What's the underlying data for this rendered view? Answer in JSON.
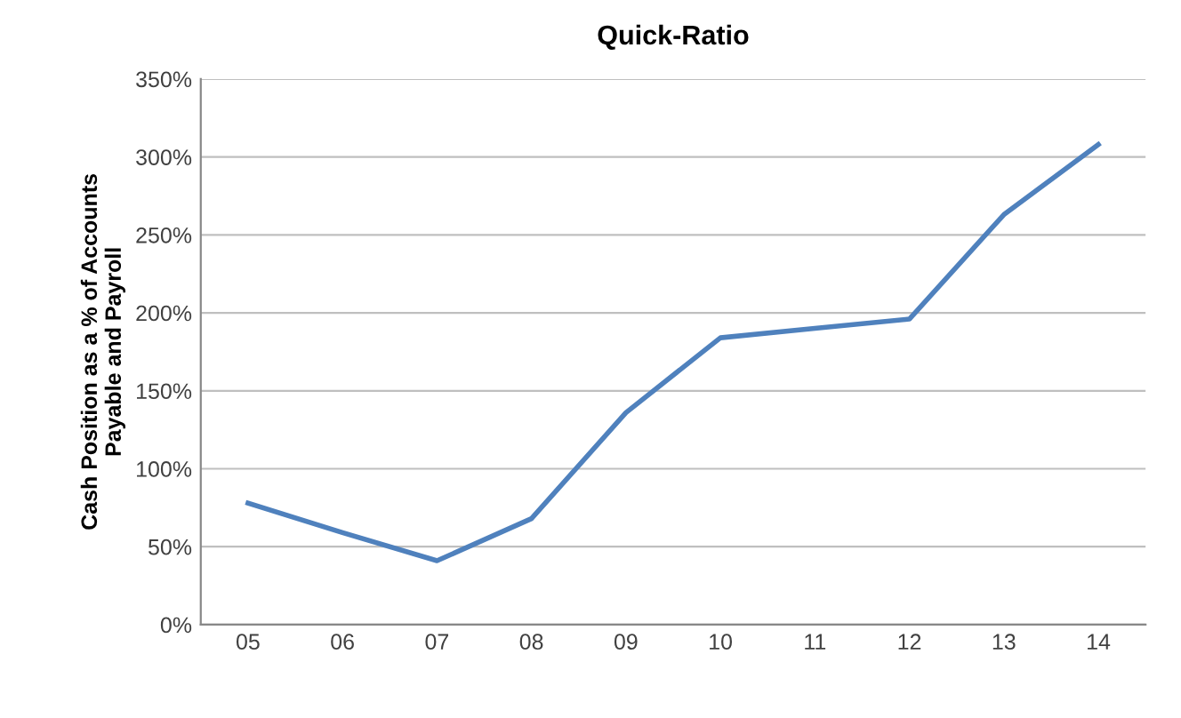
{
  "chart_data": {
    "type": "line",
    "title": "Quick-Ratio",
    "ylabel": "Cash Position as a % of Accounts\nPayable and Payroll",
    "categories": [
      "05",
      "06",
      "07",
      "08",
      "09",
      "10",
      "11",
      "12",
      "13",
      "14"
    ],
    "series": [
      {
        "color": "#4f81bd",
        "values": [
          78,
          59,
          41,
          68,
          136,
          184,
          190,
          196,
          263,
          308
        ]
      }
    ],
    "ylim": [
      0,
      350
    ],
    "yticks": [
      {
        "value": 0,
        "label": "0%"
      },
      {
        "value": 50,
        "label": "50%"
      },
      {
        "value": 100,
        "label": "100%"
      },
      {
        "value": 150,
        "label": "150%"
      },
      {
        "value": 200,
        "label": "200%"
      },
      {
        "value": 250,
        "label": "250%"
      },
      {
        "value": 300,
        "label": "300%"
      },
      {
        "value": 350,
        "label": "350%"
      }
    ],
    "grid": "y",
    "legend": false,
    "marker": "none",
    "line_style": "solid"
  }
}
